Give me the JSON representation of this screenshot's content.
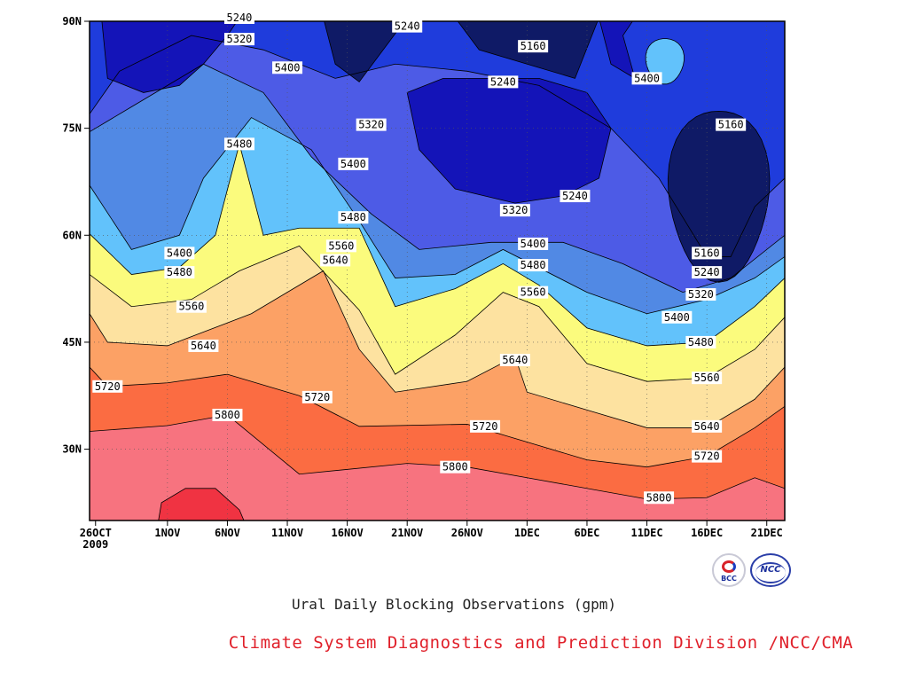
{
  "chart_data": {
    "type": "contour",
    "title": "Ural Daily Blocking Observations (gpm)",
    "credit": "Climate System Diagnostics and Prediction Division /NCC/CMA",
    "x_ticks": [
      {
        "label": "26OCT",
        "label2": "2009",
        "day": 0
      },
      {
        "label": "1NOV",
        "day": 6
      },
      {
        "label": "6NOV",
        "day": 11
      },
      {
        "label": "11NOV",
        "day": 16
      },
      {
        "label": "16NOV",
        "day": 21
      },
      {
        "label": "21NOV",
        "day": 26
      },
      {
        "label": "26NOV",
        "day": 31
      },
      {
        "label": "1DEC",
        "day": 36
      },
      {
        "label": "6DEC",
        "day": 41
      },
      {
        "label": "11DEC",
        "day": 46
      },
      {
        "label": "16DEC",
        "day": 51
      },
      {
        "label": "21DEC",
        "day": 56
      }
    ],
    "x_range": [
      -0.5,
      57.5
    ],
    "y_ticks": [
      {
        "label": "30N",
        "lat": 30
      },
      {
        "label": "45N",
        "lat": 45
      },
      {
        "label": "60N",
        "lat": 60
      },
      {
        "label": "75N",
        "lat": 75
      },
      {
        "label": "90N",
        "lat": 90
      }
    ],
    "y_range": [
      20,
      90
    ],
    "levels": [
      5160,
      5240,
      5320,
      5400,
      5480,
      5560,
      5640,
      5720,
      5800,
      5880
    ],
    "fill_colors": [
      "#0f1a66",
      "#1414b8",
      "#1f3cdc",
      "#4d5be6",
      "#5189e4",
      "#62c2fb",
      "#fbfb7d",
      "#fde2a0",
      "#fca165",
      "#fb6c42",
      "#f7737f",
      "#f03342"
    ],
    "grid": "dotted",
    "contour_lines": [
      {
        "level": 5800,
        "pts": [
          [
            -0.5,
            32.5
          ],
          [
            6,
            33.3
          ],
          [
            11,
            34.8
          ],
          [
            17,
            26.5
          ],
          [
            26,
            28
          ],
          [
            31,
            27.5
          ],
          [
            36,
            26
          ],
          [
            46,
            23
          ],
          [
            51,
            23.2
          ],
          [
            55,
            26
          ],
          [
            57.5,
            24.5
          ]
        ]
      },
      {
        "level": 5720,
        "pts": [
          [
            -0.5,
            41.5
          ],
          [
            1,
            38.8
          ],
          [
            6,
            39.3
          ],
          [
            11,
            40.5
          ],
          [
            17,
            37.5
          ],
          [
            22,
            33.2
          ],
          [
            31,
            33.5
          ],
          [
            36,
            31
          ],
          [
            41,
            28.5
          ],
          [
            46,
            27.5
          ],
          [
            51,
            29
          ],
          [
            55,
            33
          ],
          [
            57.5,
            36
          ]
        ]
      },
      {
        "level": 5640,
        "pts": [
          [
            -0.5,
            49
          ],
          [
            1,
            45
          ],
          [
            6,
            44.5
          ],
          [
            13,
            49
          ],
          [
            19,
            55
          ],
          [
            22,
            44
          ],
          [
            25,
            38
          ],
          [
            31,
            39.5
          ],
          [
            35,
            43
          ],
          [
            36,
            38
          ],
          [
            41,
            35.5
          ],
          [
            46,
            33
          ],
          [
            51,
            33
          ],
          [
            55,
            37
          ],
          [
            57.5,
            41.5
          ]
        ]
      },
      {
        "level": 5560,
        "pts": [
          [
            -0.5,
            54.5
          ],
          [
            3,
            50
          ],
          [
            8,
            51
          ],
          [
            12,
            55
          ],
          [
            17,
            58.5
          ],
          [
            22,
            49.5
          ],
          [
            25,
            40.5
          ],
          [
            30,
            46
          ],
          [
            34,
            52
          ],
          [
            37,
            50
          ],
          [
            41,
            42
          ],
          [
            46,
            39.5
          ],
          [
            51,
            40
          ],
          [
            55,
            44
          ],
          [
            57.5,
            48.5
          ]
        ]
      },
      {
        "level": 5480,
        "pts": [
          [
            -0.5,
            60.2
          ],
          [
            3,
            54.5
          ],
          [
            7,
            55.5
          ],
          [
            10,
            60
          ],
          [
            12,
            72.8
          ],
          [
            14,
            60
          ],
          [
            17,
            61
          ],
          [
            22,
            61
          ],
          [
            25,
            50
          ],
          [
            30,
            52.5
          ],
          [
            34,
            56
          ],
          [
            37,
            53
          ],
          [
            41,
            47
          ],
          [
            46,
            44.5
          ],
          [
            51,
            45
          ],
          [
            55,
            50
          ],
          [
            57.5,
            54
          ]
        ]
      },
      {
        "level": 5400,
        "pts": [
          [
            -0.5,
            67
          ],
          [
            3,
            58
          ],
          [
            7,
            60
          ],
          [
            9,
            68
          ],
          [
            13,
            76.5
          ],
          [
            18,
            72
          ],
          [
            22,
            62
          ],
          [
            25,
            54
          ],
          [
            30,
            54.5
          ],
          [
            34,
            58
          ],
          [
            41,
            52
          ],
          [
            46,
            49
          ],
          [
            51,
            51
          ],
          [
            55,
            54
          ],
          [
            57.5,
            57
          ]
        ]
      },
      {
        "level": 5320,
        "pts": [
          [
            -0.5,
            74.5
          ],
          [
            3,
            78
          ],
          [
            9,
            84
          ],
          [
            14,
            80
          ],
          [
            18,
            71
          ],
          [
            23,
            63
          ],
          [
            27,
            58
          ],
          [
            33,
            59
          ],
          [
            39,
            59
          ],
          [
            44,
            56
          ],
          [
            49,
            52
          ],
          [
            53,
            54
          ],
          [
            57.5,
            60
          ]
        ]
      },
      {
        "level": 5240,
        "pts": [
          [
            -0.5,
            77
          ],
          [
            2,
            83
          ],
          [
            8,
            88
          ],
          [
            14,
            86
          ],
          [
            20,
            82
          ],
          [
            25,
            84
          ],
          [
            31,
            83
          ],
          [
            37,
            81
          ],
          [
            43,
            75
          ],
          [
            47,
            68
          ],
          [
            51,
            57
          ],
          [
            53,
            57
          ],
          [
            55,
            64
          ],
          [
            57.5,
            68
          ]
        ]
      }
    ],
    "contour_labels": [
      {
        "text": "5800",
        "day": 11,
        "lat": 34.8
      },
      {
        "text": "5800",
        "day": 30,
        "lat": 27.5
      },
      {
        "text": "5800",
        "day": 47,
        "lat": 23.2
      },
      {
        "text": "5720",
        "day": 1,
        "lat": 38.8
      },
      {
        "text": "5720",
        "day": 18.5,
        "lat": 37.3
      },
      {
        "text": "5720",
        "day": 32.5,
        "lat": 33.2
      },
      {
        "text": "5720",
        "day": 51,
        "lat": 29
      },
      {
        "text": "5640",
        "day": 9,
        "lat": 44.5
      },
      {
        "text": "5640",
        "day": 20,
        "lat": 56.5
      },
      {
        "text": "5640",
        "day": 35,
        "lat": 42.5
      },
      {
        "text": "5640",
        "day": 51,
        "lat": 33.2
      },
      {
        "text": "5560",
        "day": 8,
        "lat": 50
      },
      {
        "text": "5560",
        "day": 20.5,
        "lat": 58.5
      },
      {
        "text": "5560",
        "day": 36.5,
        "lat": 52
      },
      {
        "text": "5560",
        "day": 51,
        "lat": 40
      },
      {
        "text": "5480",
        "day": 7,
        "lat": 54.8
      },
      {
        "text": "5480",
        "day": 12,
        "lat": 72.8
      },
      {
        "text": "5480",
        "day": 21.5,
        "lat": 62.5
      },
      {
        "text": "5480",
        "day": 36.5,
        "lat": 55.8
      },
      {
        "text": "5480",
        "day": 50.5,
        "lat": 45
      },
      {
        "text": "5400",
        "day": 7,
        "lat": 57.5
      },
      {
        "text": "5400",
        "day": 16,
        "lat": 83.5
      },
      {
        "text": "5400",
        "day": 21.5,
        "lat": 70
      },
      {
        "text": "5400",
        "day": 36.5,
        "lat": 58.8
      },
      {
        "text": "5400",
        "day": 48.5,
        "lat": 48.5
      },
      {
        "text": "5400",
        "day": 46,
        "lat": 82
      },
      {
        "text": "5320",
        "day": 12,
        "lat": 87.5
      },
      {
        "text": "5320",
        "day": 23,
        "lat": 75.5
      },
      {
        "text": "5320",
        "day": 35,
        "lat": 63.5
      },
      {
        "text": "5320",
        "day": 50.5,
        "lat": 51.7
      },
      {
        "text": "5240",
        "day": 12,
        "lat": 90.5
      },
      {
        "text": "5240",
        "day": 26,
        "lat": 89.3
      },
      {
        "text": "5240",
        "day": 34,
        "lat": 81.5
      },
      {
        "text": "5240",
        "day": 40,
        "lat": 65.5
      },
      {
        "text": "5240",
        "day": 51,
        "lat": 54.8
      },
      {
        "text": "5160",
        "day": 36.5,
        "lat": 86.5
      },
      {
        "text": "5160",
        "day": 53,
        "lat": 75.5
      },
      {
        "text": "5160",
        "day": 51,
        "lat": 57.5
      }
    ]
  },
  "logos": [
    {
      "name": "BCC",
      "text": "BCC"
    },
    {
      "name": "NCC",
      "text": "NCC"
    }
  ]
}
